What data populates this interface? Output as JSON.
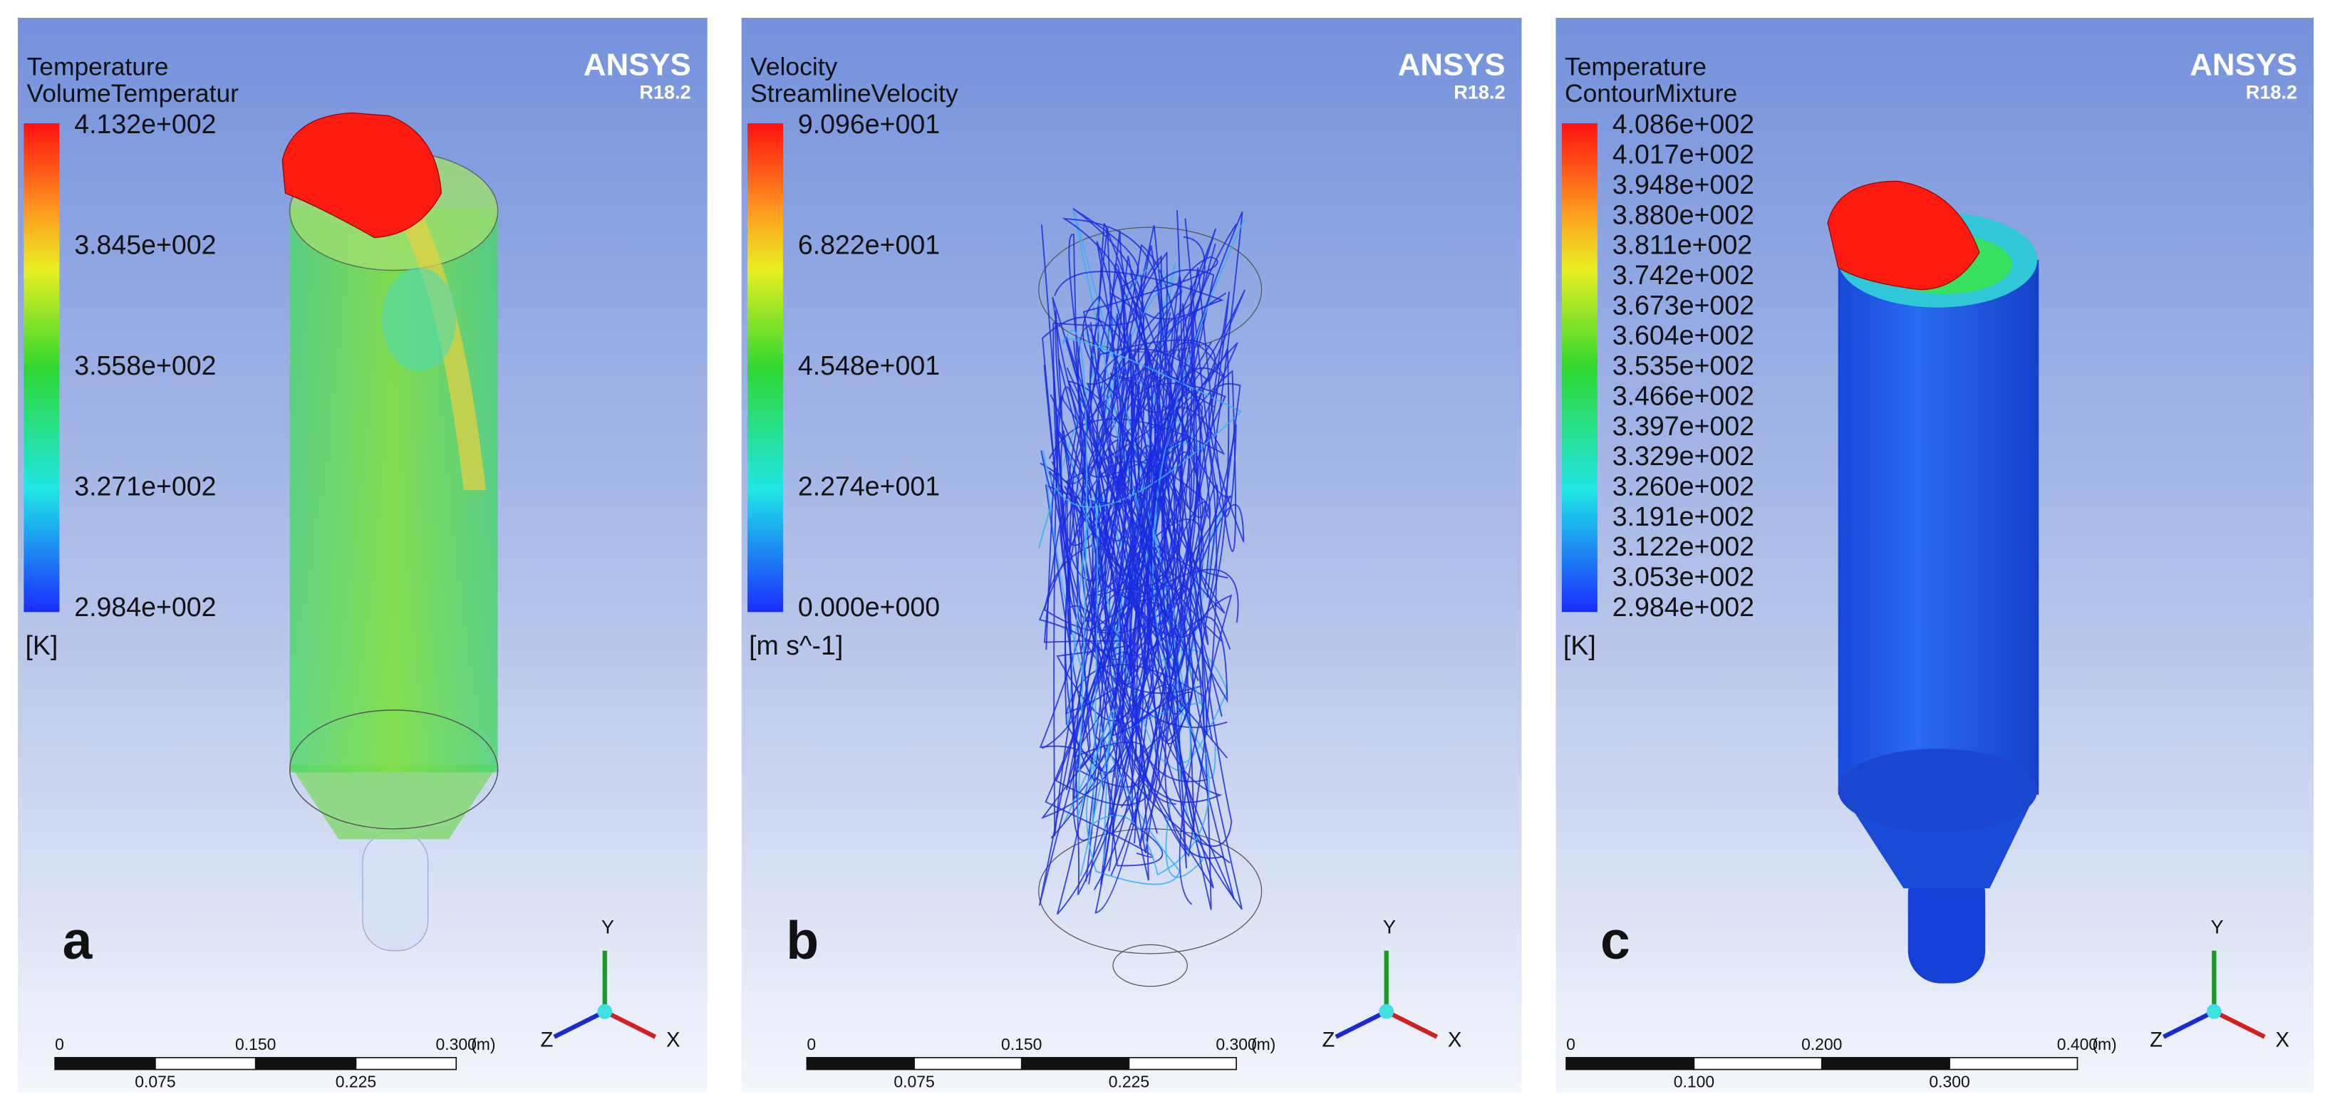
{
  "panels": [
    {
      "label": "a",
      "title": "Temperature",
      "variable": "VolumeTemperatur",
      "brand": "ANSYS",
      "version": "R18.2",
      "legend": [
        "4.132e+002",
        "3.845e+002",
        "3.558e+002",
        "3.271e+002",
        "2.984e+002"
      ],
      "unit": "[K]",
      "scale_top": [
        "0",
        "0.150",
        "0.300"
      ],
      "scale_unit": "(m)",
      "scale_bottom": [
        "0.075",
        "0.225"
      ],
      "axes": {
        "x": "X",
        "y": "Y",
        "z": "Z"
      }
    },
    {
      "label": "b",
      "title": "Velocity",
      "variable": "StreamlineVelocity",
      "brand": "ANSYS",
      "version": "R18.2",
      "legend": [
        "9.096e+001",
        "6.822e+001",
        "4.548e+001",
        "2.274e+001",
        "0.000e+000"
      ],
      "unit": "[m s^-1]",
      "scale_top": [
        "0",
        "0.150",
        "0.300"
      ],
      "scale_unit": "(m)",
      "scale_bottom": [
        "0.075",
        "0.225"
      ],
      "axes": {
        "x": "X",
        "y": "Y",
        "z": "Z"
      }
    },
    {
      "label": "c",
      "title": "Temperature",
      "variable": "ContourMixture",
      "brand": "ANSYS",
      "version": "R18.2",
      "legend": [
        "4.086e+002",
        "4.017e+002",
        "3.948e+002",
        "3.880e+002",
        "3.811e+002",
        "3.742e+002",
        "3.673e+002",
        "3.604e+002",
        "3.535e+002",
        "3.466e+002",
        "3.397e+002",
        "3.329e+002",
        "3.260e+002",
        "3.191e+002",
        "3.122e+002",
        "3.053e+002",
        "2.984e+002"
      ],
      "unit": "[K]",
      "scale_top": [
        "0",
        "0.200",
        "0.400"
      ],
      "scale_unit": "(m)",
      "scale_bottom": [
        "0.100",
        "0.300"
      ],
      "axes": {
        "x": "X",
        "y": "Y",
        "z": "Z"
      }
    }
  ]
}
